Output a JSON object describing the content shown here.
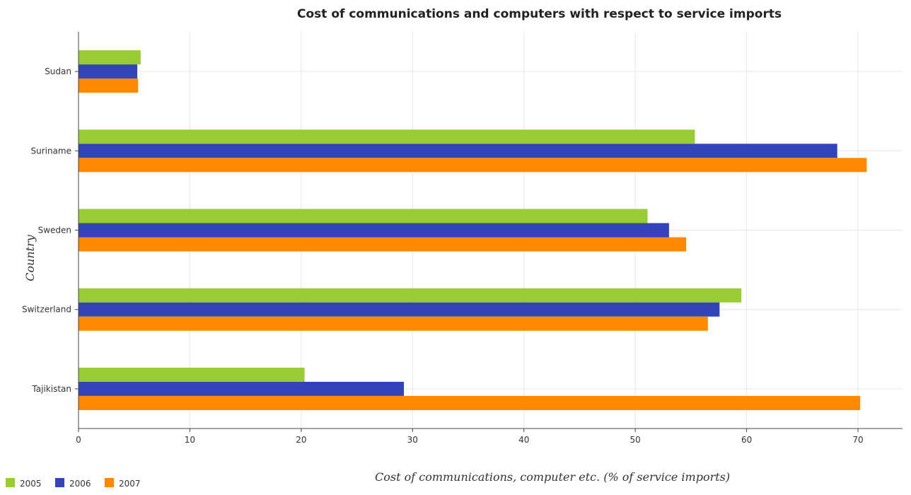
{
  "chart_data": {
    "type": "bar",
    "orientation": "horizontal",
    "title": "Cost of communications and computers with respect to service imports",
    "xlabel": "Cost of communications, computer etc. (% of service imports)",
    "ylabel": "Country",
    "categories": [
      "Sudan",
      "Suriname",
      "Sweden",
      "Switzerland",
      "Tajikistan"
    ],
    "xlim": [
      0,
      74
    ],
    "xticks": [
      0,
      10,
      20,
      30,
      40,
      50,
      60,
      70
    ],
    "grid": true,
    "legend_position": "bottom-left",
    "series": [
      {
        "name": "2005",
        "color": "#99cc33",
        "values": [
          5.58,
          55.35,
          51.1,
          59.53,
          20.3
        ]
      },
      {
        "name": "2006",
        "color": "#3344bb",
        "values": [
          5.28,
          68.14,
          53.03,
          57.57,
          29.22
        ]
      },
      {
        "name": "2007",
        "color": "#ff8800",
        "values": [
          5.35,
          70.78,
          54.57,
          56.52,
          70.2
        ]
      }
    ]
  }
}
